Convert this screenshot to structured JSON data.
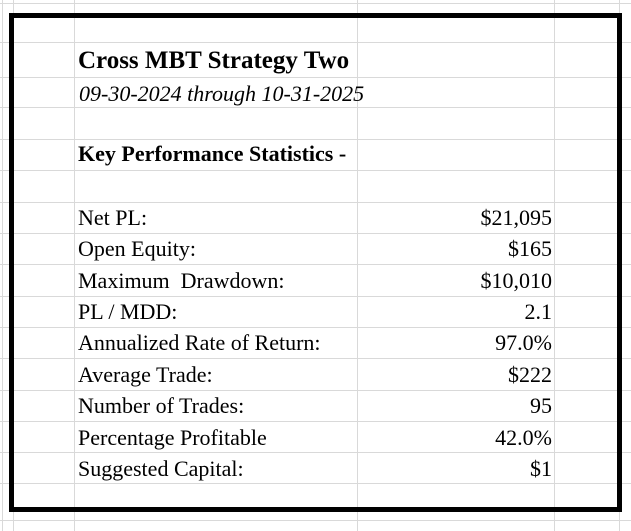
{
  "theme": {
    "background_color": "#ffffff",
    "gridline_color": "#d9d9d9",
    "border_color": "#000000",
    "text_color": "#000000"
  },
  "report": {
    "title": "Cross MBT Strategy Two",
    "date_range": "09-30-2024 through 10-31-2025",
    "section_header": "Key Performance Statistics -",
    "stats": [
      {
        "label": "Net PL:",
        "value": "$21,095"
      },
      {
        "label": "Open Equity:",
        "value": "$165"
      },
      {
        "label": "Maximum  Drawdown:",
        "value": "$10,010"
      },
      {
        "label": "PL / MDD:",
        "value": "2.1"
      },
      {
        "label": "Annualized Rate of Return:",
        "value": "97.0%"
      },
      {
        "label": "Average Trade:",
        "value": "$222"
      },
      {
        "label": "Number of Trades:",
        "value": "95"
      },
      {
        "label": "Percentage Profitable",
        "value": "42.0%"
      },
      {
        "label": "Suggested Capital:",
        "value": "$1"
      }
    ]
  }
}
